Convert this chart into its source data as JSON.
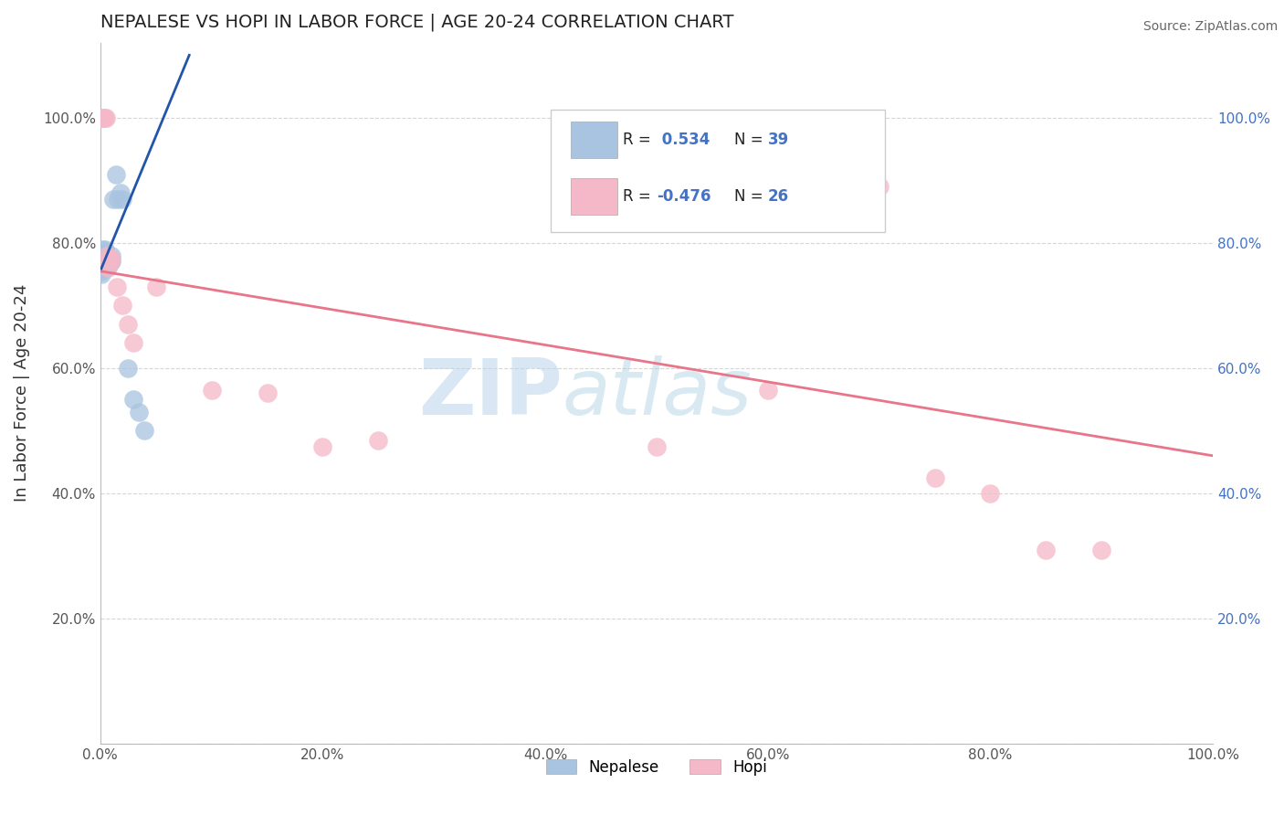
{
  "title": "NEPALESE VS HOPI IN LABOR FORCE | AGE 20-24 CORRELATION CHART",
  "source": "Source: ZipAtlas.com",
  "ylabel": "In Labor Force | Age 20-24",
  "xlim": [
    0.0,
    1.0
  ],
  "ylim": [
    0.0,
    1.12
  ],
  "xtick_vals": [
    0.0,
    0.2,
    0.4,
    0.6,
    0.8,
    1.0
  ],
  "xtick_labels": [
    "0.0%",
    "20.0%",
    "40.0%",
    "60.0%",
    "80.0%",
    "100.0%"
  ],
  "ytick_vals": [
    0.0,
    0.2,
    0.4,
    0.6,
    0.8,
    1.0
  ],
  "ytick_labels": [
    "",
    "20.0%",
    "40.0%",
    "60.0%",
    "80.0%",
    "100.0%"
  ],
  "nepalese_color": "#a8c4e0",
  "hopi_color": "#f4b8c8",
  "nepalese_line_color": "#2255aa",
  "hopi_line_color": "#e8758a",
  "background_color": "#ffffff",
  "grid_color": "#cccccc",
  "legend_color": "#4472c4",
  "nepalese_R": 0.534,
  "nepalese_N": 39,
  "hopi_R": -0.476,
  "hopi_N": 26,
  "watermark_zip": "ZIP",
  "watermark_atlas": "atlas",
  "nepalese_x": [
    0.001,
    0.001,
    0.001,
    0.001,
    0.001,
    0.002,
    0.002,
    0.002,
    0.002,
    0.003,
    0.003,
    0.003,
    0.003,
    0.004,
    0.004,
    0.004,
    0.005,
    0.005,
    0.005,
    0.006,
    0.006,
    0.006,
    0.007,
    0.007,
    0.008,
    0.008,
    0.009,
    0.009,
    0.01,
    0.01,
    0.012,
    0.014,
    0.016,
    0.018,
    0.02,
    0.025,
    0.03,
    0.035,
    0.04
  ],
  "nepalese_y": [
    0.77,
    0.78,
    0.755,
    0.76,
    0.75,
    0.79,
    0.775,
    0.77,
    0.76,
    0.785,
    0.78,
    0.775,
    0.77,
    0.79,
    0.785,
    0.775,
    0.78,
    0.775,
    0.765,
    0.775,
    0.77,
    0.76,
    0.775,
    0.77,
    0.77,
    0.765,
    0.77,
    0.775,
    0.78,
    0.77,
    0.87,
    0.91,
    0.87,
    0.88,
    0.87,
    0.6,
    0.55,
    0.53,
    0.5
  ],
  "hopi_x": [
    0.001,
    0.002,
    0.003,
    0.004,
    0.005,
    0.006,
    0.007,
    0.008,
    0.009,
    0.01,
    0.015,
    0.02,
    0.025,
    0.03,
    0.05,
    0.1,
    0.15,
    0.2,
    0.25,
    0.5,
    0.6,
    0.7,
    0.75,
    0.8,
    0.85,
    0.9
  ],
  "hopi_y": [
    1.0,
    1.0,
    1.0,
    1.0,
    1.0,
    0.78,
    0.76,
    0.775,
    0.77,
    0.775,
    0.73,
    0.7,
    0.67,
    0.64,
    0.73,
    0.565,
    0.56,
    0.475,
    0.485,
    0.475,
    0.565,
    0.89,
    0.425,
    0.4,
    0.31,
    0.31
  ],
  "nep_line_x": [
    0.0,
    0.08
  ],
  "nep_line_y": [
    0.755,
    1.1
  ],
  "hopi_line_x": [
    0.0,
    1.0
  ],
  "hopi_line_y": [
    0.755,
    0.46
  ]
}
